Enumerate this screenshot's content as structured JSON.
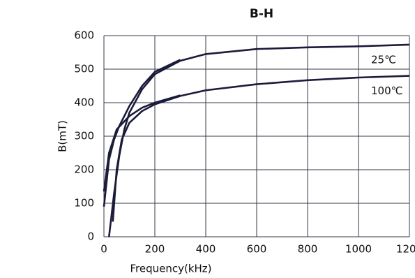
{
  "chart_data": {
    "type": "line",
    "title": "B-H",
    "x_label": "Frequency(kHz)",
    "y_label": "B(mT)",
    "xlim": [
      0,
      1200
    ],
    "ylim": [
      0,
      600
    ],
    "xticks": [
      0,
      200,
      400,
      600,
      800,
      1000,
      1200
    ],
    "yticks": [
      0,
      100,
      200,
      300,
      400,
      500,
      600
    ],
    "grid": true,
    "series": [
      {
        "name": "25℃",
        "color": "#1b1b3a",
        "x": [
          20,
          40,
          60,
          80,
          100,
          150,
          200,
          300,
          400,
          600,
          800,
          1000,
          1200,
          null,
          0,
          20,
          40,
          60,
          100,
          150,
          200,
          300
        ],
        "values": [
          0,
          130,
          240,
          320,
          370,
          440,
          485,
          525,
          545,
          560,
          565,
          568,
          573,
          null,
          90,
          230,
          290,
          330,
          390,
          450,
          492,
          528
        ]
      },
      {
        "name": "100℃",
        "color": "#1b1b3a",
        "x": [
          35,
          50,
          70,
          100,
          150,
          200,
          300,
          400,
          600,
          800,
          1000,
          1200,
          null,
          0,
          20,
          50,
          100,
          150,
          200,
          300
        ],
        "values": [
          45,
          200,
          290,
          340,
          375,
          395,
          420,
          437,
          455,
          467,
          475,
          480,
          null,
          135,
          250,
          320,
          360,
          385,
          400,
          422
        ]
      }
    ]
  }
}
